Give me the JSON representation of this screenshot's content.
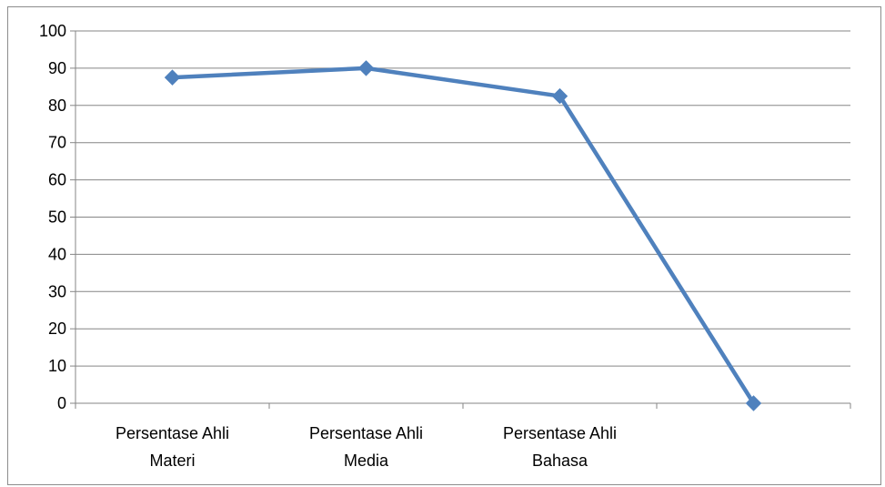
{
  "chart_data": {
    "type": "line",
    "categories": [
      [
        "Persentase Ahli",
        "Materi"
      ],
      [
        "Persentase Ahli",
        "Media"
      ],
      [
        "Persentase Ahli",
        "Bahasa"
      ],
      [
        ""
      ]
    ],
    "series": [
      {
        "values": [
          87.5,
          90,
          82.5,
          0
        ]
      }
    ],
    "ylim": [
      0,
      100
    ],
    "yticks": [
      0,
      10,
      20,
      30,
      40,
      50,
      60,
      70,
      80,
      90,
      100
    ],
    "grid": true,
    "legend": "none",
    "colors": {
      "series": "#4f81bd",
      "grid": "#868686",
      "axis": "#868686"
    }
  }
}
